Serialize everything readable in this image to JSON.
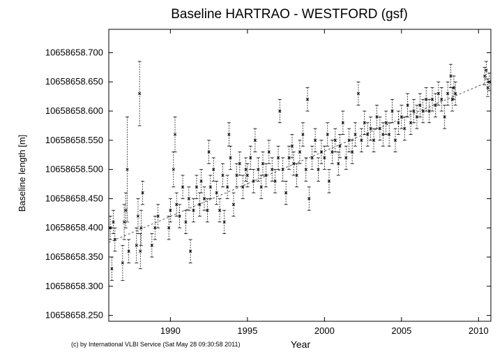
{
  "chart_data": {
    "type": "scatter",
    "title": "Baseline HARTRAO - WESTFORD (gsf)",
    "xlabel": "Year",
    "ylabel": "Baseline length [m]",
    "xlim": [
      1986,
      2010.8
    ],
    "ylim": [
      10658658.24,
      10658658.74
    ],
    "x_ticks": [
      1990,
      1995,
      2000,
      2005,
      2010
    ],
    "y_ticks": [
      10658658.25,
      10658658.3,
      10658658.35,
      10658658.4,
      10658658.45,
      10658658.5,
      10658658.55,
      10658658.6,
      10658658.65,
      10658658.7
    ],
    "y_tick_labels": [
      "10658658.250",
      "10658658.300",
      "10658658.350",
      "10658658.400",
      "10658658.450",
      "10658658.500",
      "10658658.550",
      "10658658.600",
      "10658658.650",
      "10658658.700"
    ],
    "grid": false,
    "error_bars": true,
    "trend_line": {
      "x": [
        1986,
        2010.8
      ],
      "y": [
        10658658.375,
        10658658.652
      ]
    },
    "series": [
      {
        "points": [
          [
            1986.1,
            10658658.4,
            0.02
          ],
          [
            1986.2,
            10658658.33,
            0.02
          ],
          [
            1986.3,
            10658658.41,
            0.02
          ],
          [
            1986.4,
            10658658.38,
            0.02
          ],
          [
            1986.9,
            10658658.34,
            0.03
          ],
          [
            1987.0,
            10658658.41,
            0.03
          ],
          [
            1987.1,
            10658658.43,
            0.03
          ],
          [
            1987.2,
            10658658.5,
            0.09
          ],
          [
            1987.3,
            10658658.36,
            0.02
          ],
          [
            1987.8,
            10658658.37,
            0.03
          ],
          [
            1987.9,
            10658658.42,
            0.03
          ],
          [
            1988.0,
            10658658.63,
            0.055
          ],
          [
            1988.05,
            10658658.36,
            0.03
          ],
          [
            1988.1,
            10658658.4,
            0.03
          ],
          [
            1988.2,
            10658658.46,
            0.02
          ],
          [
            1988.8,
            10658658.37,
            0.02
          ],
          [
            1989.0,
            10658658.4,
            0.02
          ],
          [
            1989.2,
            10658658.42,
            0.02
          ],
          [
            1989.9,
            10658658.4,
            0.02
          ],
          [
            1990.0,
            10658658.43,
            0.02
          ],
          [
            1990.2,
            10658658.5,
            0.03
          ],
          [
            1990.3,
            10658658.56,
            0.03
          ],
          [
            1990.4,
            10658658.44,
            0.02
          ],
          [
            1990.6,
            10658658.42,
            0.02
          ],
          [
            1990.8,
            10658658.47,
            0.02
          ],
          [
            1991.0,
            10658658.41,
            0.02
          ],
          [
            1991.2,
            10658658.45,
            0.02
          ],
          [
            1991.3,
            10658658.36,
            0.02
          ],
          [
            1991.5,
            10658658.43,
            0.02
          ],
          [
            1991.7,
            10658658.47,
            0.02
          ],
          [
            1991.9,
            10658658.44,
            0.02
          ],
          [
            1992.0,
            10658658.48,
            0.02
          ],
          [
            1992.2,
            10658658.45,
            0.02
          ],
          [
            1992.4,
            10658658.43,
            0.02
          ],
          [
            1992.5,
            10658658.53,
            0.02
          ],
          [
            1992.6,
            10658658.47,
            0.02
          ],
          [
            1992.8,
            10658658.5,
            0.02
          ],
          [
            1993.0,
            10658658.46,
            0.02
          ],
          [
            1993.2,
            10658658.43,
            0.02
          ],
          [
            1993.4,
            10658658.49,
            0.02
          ],
          [
            1993.5,
            10658658.41,
            0.02
          ],
          [
            1993.7,
            10658658.47,
            0.02
          ],
          [
            1993.8,
            10658658.56,
            0.02
          ],
          [
            1993.9,
            10658658.52,
            0.02
          ],
          [
            1994.1,
            10658658.44,
            0.02
          ],
          [
            1994.3,
            10658658.49,
            0.02
          ],
          [
            1994.5,
            10658658.51,
            0.02
          ],
          [
            1994.7,
            10658658.47,
            0.02
          ],
          [
            1994.9,
            10658658.5,
            0.02
          ],
          [
            1995.0,
            10658658.49,
            0.02
          ],
          [
            1995.2,
            10658658.52,
            0.02
          ],
          [
            1995.4,
            10658658.48,
            0.02
          ],
          [
            1995.5,
            10658658.55,
            0.02
          ],
          [
            1995.7,
            10658658.5,
            0.02
          ],
          [
            1995.9,
            10658658.47,
            0.02
          ],
          [
            1996.0,
            10658658.51,
            0.02
          ],
          [
            1996.2,
            10658658.49,
            0.02
          ],
          [
            1996.4,
            10658658.53,
            0.02
          ],
          [
            1996.6,
            10658658.5,
            0.02
          ],
          [
            1996.8,
            10658658.48,
            0.02
          ],
          [
            1997.0,
            10658658.52,
            0.02
          ],
          [
            1997.1,
            10658658.6,
            0.02
          ],
          [
            1997.3,
            10658658.5,
            0.02
          ],
          [
            1997.5,
            10658658.46,
            0.02
          ],
          [
            1997.7,
            10658658.52,
            0.02
          ],
          [
            1997.9,
            10658658.54,
            0.02
          ],
          [
            1998.0,
            10658658.51,
            0.02
          ],
          [
            1998.2,
            10658658.49,
            0.02
          ],
          [
            1998.4,
            10658658.53,
            0.02
          ],
          [
            1998.6,
            10658658.56,
            0.02
          ],
          [
            1998.8,
            10658658.5,
            0.02
          ],
          [
            1998.9,
            10658658.62,
            0.02
          ],
          [
            1999.0,
            10658658.45,
            0.02
          ],
          [
            1999.2,
            10658658.52,
            0.02
          ],
          [
            1999.4,
            10658658.55,
            0.02
          ],
          [
            1999.6,
            10658658.5,
            0.02
          ],
          [
            1999.8,
            10658658.53,
            0.02
          ],
          [
            2000.0,
            10658658.52,
            0.02
          ],
          [
            2000.2,
            10658658.56,
            0.02
          ],
          [
            2000.3,
            10658658.48,
            0.02
          ],
          [
            2000.5,
            10658658.53,
            0.02
          ],
          [
            2000.7,
            10658658.55,
            0.02
          ],
          [
            2000.9,
            10658658.51,
            0.02
          ],
          [
            2001.0,
            10658658.54,
            0.02
          ],
          [
            2001.2,
            10658658.58,
            0.02
          ],
          [
            2001.4,
            10658658.52,
            0.02
          ],
          [
            2001.6,
            10658658.55,
            0.02
          ],
          [
            2001.8,
            10658658.53,
            0.02
          ],
          [
            2002.0,
            10658658.56,
            0.02
          ],
          [
            2002.2,
            10658658.63,
            0.02
          ],
          [
            2002.4,
            10658658.55,
            0.02
          ],
          [
            2002.6,
            10658658.58,
            0.02
          ],
          [
            2002.8,
            10658658.56,
            0.02
          ],
          [
            2003.0,
            10658658.57,
            0.02
          ],
          [
            2003.2,
            10658658.55,
            0.02
          ],
          [
            2003.4,
            10658658.59,
            0.02
          ],
          [
            2003.6,
            10658658.57,
            0.02
          ],
          [
            2003.8,
            10658658.56,
            0.02
          ],
          [
            2004.0,
            10658658.58,
            0.02
          ],
          [
            2004.2,
            10658658.56,
            0.02
          ],
          [
            2004.4,
            10658658.6,
            0.02
          ],
          [
            2004.6,
            10658658.55,
            0.02
          ],
          [
            2004.8,
            10658658.58,
            0.02
          ],
          [
            2005.0,
            10658658.59,
            0.02
          ],
          [
            2005.2,
            10658658.57,
            0.02
          ],
          [
            2005.4,
            10658658.61,
            0.02
          ],
          [
            2005.6,
            10658658.58,
            0.02
          ],
          [
            2005.8,
            10658658.6,
            0.02
          ],
          [
            2006.0,
            10658658.59,
            0.02
          ],
          [
            2006.2,
            10658658.61,
            0.02
          ],
          [
            2006.4,
            10658658.6,
            0.02
          ],
          [
            2006.6,
            10658658.62,
            0.02
          ],
          [
            2006.8,
            10658658.6,
            0.02
          ],
          [
            2007.0,
            10658658.62,
            0.02
          ],
          [
            2007.2,
            10658658.61,
            0.02
          ],
          [
            2007.4,
            10658658.63,
            0.02
          ],
          [
            2007.6,
            10658658.62,
            0.02
          ],
          [
            2007.8,
            10658658.59,
            0.02
          ],
          [
            2008.0,
            10658658.63,
            0.02
          ],
          [
            2008.2,
            10658658.66,
            0.02
          ],
          [
            2008.3,
            10658658.62,
            0.02
          ],
          [
            2008.4,
            10658658.64,
            0.02
          ],
          [
            2008.5,
            10658658.63,
            0.02
          ],
          [
            2010.4,
            10658658.66,
            0.015
          ],
          [
            2010.5,
            10658658.67,
            0.015
          ],
          [
            2010.6,
            10658658.64,
            0.015
          ],
          [
            2010.7,
            10658658.65,
            0.015
          ]
        ]
      }
    ]
  },
  "footer": {
    "credit": "(c) by International VLBI Service (Sat May 28 09:30:58 2011)"
  }
}
